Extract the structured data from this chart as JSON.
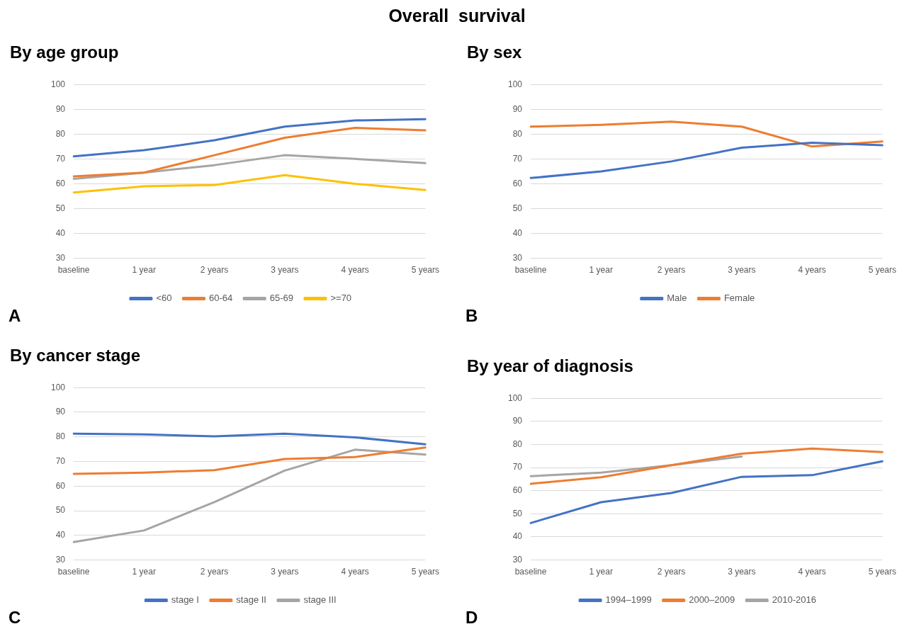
{
  "chart_data": [
    {
      "type": "line",
      "title": "By age group",
      "annotations": [
        "Overall  survival",
        "A"
      ],
      "categories": [
        "baseline",
        "1 year",
        "2 years",
        "3 years",
        "4 years",
        "5 years"
      ],
      "ylim": [
        30,
        100
      ],
      "yticks": [
        30,
        40,
        50,
        60,
        70,
        80,
        90,
        100
      ],
      "grid": "y",
      "legend": "bottom",
      "marker": "none",
      "series": [
        {
          "name": "<60",
          "color": "#4472c4",
          "values": [
            71,
            73.5,
            77.5,
            83,
            85.5,
            86
          ]
        },
        {
          "name": "60-64",
          "color": "#ed7d31",
          "values": [
            63,
            64.5,
            71.5,
            78.5,
            82.5,
            81.5
          ]
        },
        {
          "name": "65-69",
          "color": "#a5a5a5",
          "values": [
            62,
            64.5,
            67.5,
            71.5,
            70,
            68.3
          ]
        },
        {
          "name": ">=70",
          "color": "#ffc000",
          "values": [
            56.5,
            59,
            59.5,
            63.5,
            60,
            57.5
          ]
        }
      ]
    },
    {
      "type": "line",
      "title": "By sex",
      "annotations": [
        "B"
      ],
      "categories": [
        "baseline",
        "1 year",
        "2 years",
        "3 years",
        "4 years",
        "5 years"
      ],
      "ylim": [
        30,
        100
      ],
      "yticks": [
        30,
        40,
        50,
        60,
        70,
        80,
        90,
        100
      ],
      "grid": "y",
      "legend": "bottom",
      "marker": "none",
      "series": [
        {
          "name": "Male",
          "color": "#4472c4",
          "values": [
            62.3,
            65,
            69,
            74.5,
            76.5,
            75.5
          ]
        },
        {
          "name": "Female",
          "color": "#ed7d31",
          "values": [
            83,
            83.7,
            85,
            83,
            75,
            77
          ]
        }
      ]
    },
    {
      "type": "line",
      "title": "By cancer stage",
      "annotations": [
        "C"
      ],
      "categories": [
        "baseline",
        "1 year",
        "2 years",
        "3 years",
        "4 years",
        "5 years"
      ],
      "ylim": [
        30,
        100
      ],
      "yticks": [
        30,
        40,
        50,
        60,
        70,
        80,
        90,
        100
      ],
      "grid": "y",
      "legend": "bottom",
      "marker": "none",
      "series": [
        {
          "name": "stage I",
          "color": "#4472c4",
          "values": [
            81.3,
            81,
            80.2,
            81.3,
            79.8,
            77
          ]
        },
        {
          "name": "stage II",
          "color": "#ed7d31",
          "values": [
            65,
            65.5,
            66.5,
            71,
            71.8,
            75.7
          ]
        },
        {
          "name": "stage III",
          "color": "#a5a5a5",
          "values": [
            37.3,
            42,
            53.5,
            66.3,
            74.8,
            72.8
          ]
        }
      ]
    },
    {
      "type": "line",
      "title": "By year of diagnosis",
      "annotations": [
        "D"
      ],
      "categories": [
        "baseline",
        "1 year",
        "2 years",
        "3 years",
        "4 years",
        "5 years"
      ],
      "ylim": [
        30,
        100
      ],
      "yticks": [
        30,
        40,
        50,
        60,
        70,
        80,
        90,
        100
      ],
      "grid": "y",
      "legend": "bottom",
      "marker": "none",
      "series": [
        {
          "name": "1994–1999",
          "color": "#4472c4",
          "values": [
            46,
            55,
            59,
            66,
            66.7,
            72.7
          ]
        },
        {
          "name": "2000–2009",
          "color": "#ed7d31",
          "values": [
            63,
            65.8,
            71,
            76,
            78.2,
            76.7
          ]
        },
        {
          "name": "2010-2016",
          "color": "#a5a5a5",
          "values": [
            66.3,
            67.8,
            71,
            74.8,
            null,
            null
          ]
        }
      ]
    }
  ]
}
